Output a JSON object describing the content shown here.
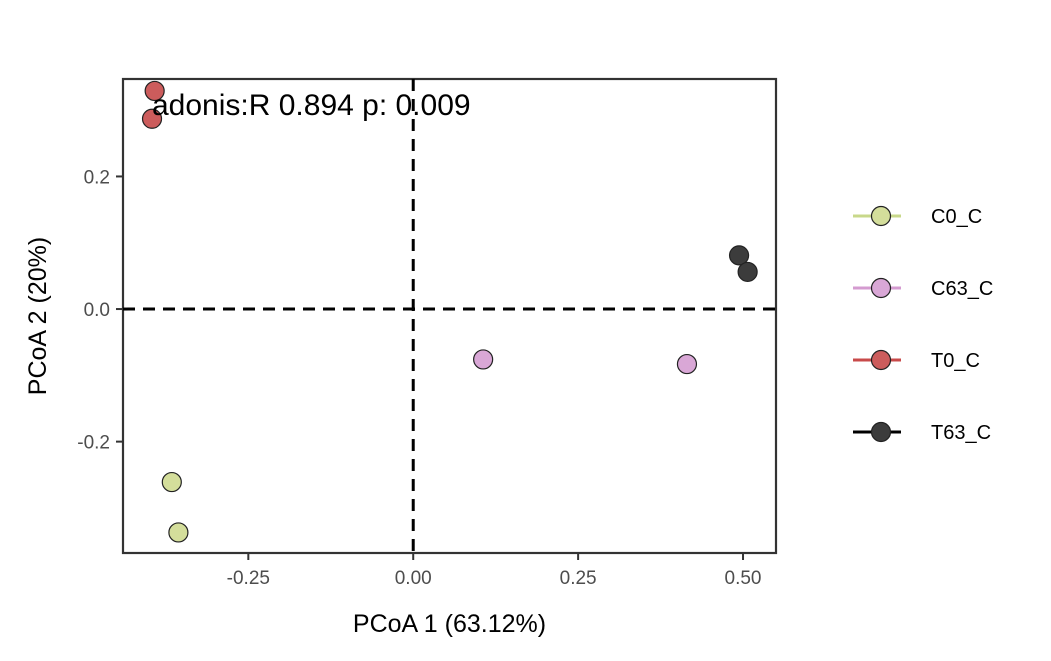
{
  "chart_data": {
    "type": "scatter",
    "annotation": "adonis:R 0.894 p: 0.009",
    "xlabel": "PCoA 1 (63.12%)",
    "ylabel": "PCoA 2 (20%)",
    "xlim": [
      -0.44,
      0.55
    ],
    "ylim": [
      -0.368,
      0.347
    ],
    "x_ticks": [
      -0.25,
      0.0,
      0.25,
      0.5
    ],
    "x_tick_labels": [
      "-0.25",
      "0.00",
      "0.25",
      "0.50"
    ],
    "y_ticks": [
      -0.2,
      0.0,
      0.2
    ],
    "y_tick_labels": [
      "-0.2",
      "0.0",
      "0.2"
    ],
    "reference_lines": {
      "x": 0,
      "y": 0,
      "style": "dashed"
    },
    "grid": false,
    "legend_position": "right",
    "series": [
      {
        "name": "C0_C",
        "color": "#d4de9b",
        "points": [
          [
            -0.366,
            -0.261
          ],
          [
            -0.356,
            -0.337
          ]
        ]
      },
      {
        "name": "C63_C",
        "color": "#d9a7d6",
        "points": [
          [
            0.106,
            -0.076
          ],
          [
            0.415,
            -0.083
          ]
        ]
      },
      {
        "name": "T0_C",
        "color": "#cc5c5c",
        "points": [
          [
            -0.392,
            0.329
          ],
          [
            -0.396,
            0.287
          ]
        ]
      },
      {
        "name": "T63_C",
        "color": "#3c3c3c",
        "points": [
          [
            0.494,
            0.081
          ],
          [
            0.507,
            0.056
          ]
        ]
      }
    ],
    "legend_line_colors": {
      "C0_C": "#c8d88a",
      "C63_C": "#d49bd0",
      "T0_C": "#c84a4a",
      "T63_C": "#000000"
    }
  }
}
